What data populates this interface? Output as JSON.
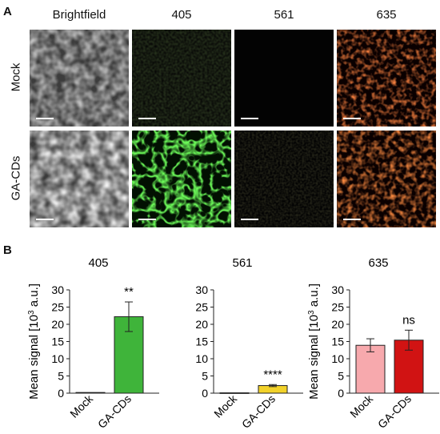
{
  "panel_a": {
    "letter": "A",
    "columns": [
      "Brightfield",
      "405",
      "561",
      "635"
    ],
    "rows": [
      "Mock",
      "GA-CDs"
    ]
  },
  "panel_b": {
    "letter": "B"
  },
  "colors": {
    "mock_405": "#ffffff",
    "gacds_405": "#3fb43a",
    "mock_561": "#ffffff",
    "gacds_561": "#f2d22a",
    "mock_635": "#f7a9ad",
    "gacds_635": "#d11313"
  },
  "chart_data": [
    {
      "type": "bar",
      "title": "405",
      "categories": [
        "Mock",
        "GA-CDs"
      ],
      "values": [
        0.2,
        22.2
      ],
      "errors": [
        0.1,
        4.3
      ],
      "significance": "**",
      "ylabel": "Mean signal [10³ a.u.]",
      "ylim": [
        0,
        30
      ],
      "yticks": [
        0,
        5,
        10,
        15,
        20,
        25,
        30
      ]
    },
    {
      "type": "bar",
      "title": "561",
      "categories": [
        "Mock",
        "GA-CDs"
      ],
      "values": [
        0.1,
        2.2
      ],
      "errors": [
        0.05,
        0.3
      ],
      "significance": "****",
      "ylabel": "",
      "ylim": [
        0,
        30
      ],
      "yticks": [
        0,
        5,
        10,
        15,
        20,
        25,
        30
      ]
    },
    {
      "type": "bar",
      "title": "635",
      "categories": [
        "Mock",
        "GA-CDs"
      ],
      "values": [
        13.9,
        15.4
      ],
      "errors": [
        1.9,
        2.9
      ],
      "significance": "ns",
      "ylabel": "Mean signal [10³ a.u.]",
      "ylim": [
        0,
        30
      ],
      "yticks": [
        0,
        5,
        10,
        15,
        20,
        25,
        30
      ]
    }
  ]
}
